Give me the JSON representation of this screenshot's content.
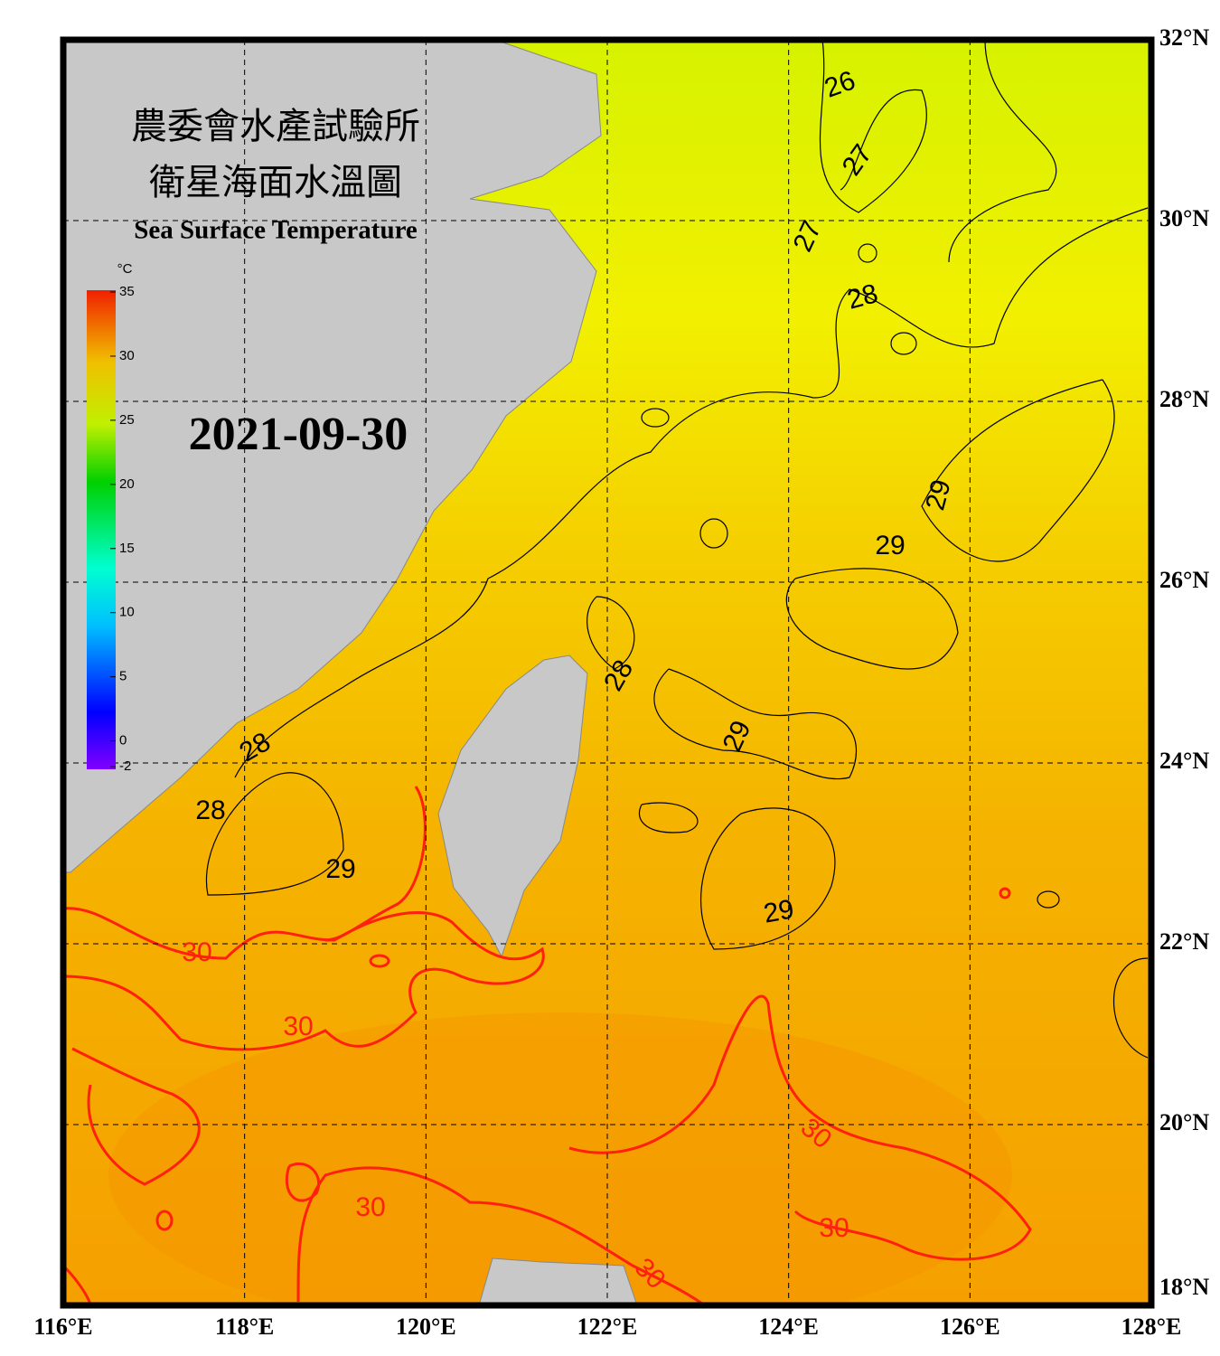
{
  "header": {
    "title_zh_1": "農委會水產試驗所",
    "title_zh_2": "衛星海面水溫圖",
    "title_en": "Sea Surface Temperature",
    "date": "2021-09-30"
  },
  "colorbar": {
    "unit": "°C",
    "ticks": [
      35,
      30,
      25,
      20,
      15,
      10,
      5,
      0,
      -2
    ],
    "range": [
      -2,
      35
    ]
  },
  "map": {
    "lon_labels": [
      "116°E",
      "118°E",
      "120°E",
      "122°E",
      "124°E",
      "126°E",
      "128°E"
    ],
    "lat_labels": [
      "32°N",
      "30°N",
      "28°N",
      "26°N",
      "24°N",
      "22°N",
      "20°N",
      "18°N"
    ],
    "grid": true,
    "contour_labels": [
      {
        "value": 26,
        "color": "#000000"
      },
      {
        "value": 27,
        "color": "#000000"
      },
      {
        "value": 27,
        "color": "#000000"
      },
      {
        "value": 28,
        "color": "#000000"
      },
      {
        "value": 29,
        "color": "#000000"
      },
      {
        "value": 29,
        "color": "#000000"
      },
      {
        "value": 28,
        "color": "#000000"
      },
      {
        "value": 29,
        "color": "#000000"
      },
      {
        "value": 28,
        "color": "#000000"
      },
      {
        "value": 28,
        "color": "#000000"
      },
      {
        "value": 29,
        "color": "#000000"
      },
      {
        "value": 29,
        "color": "#000000"
      },
      {
        "value": 30,
        "color": "#ff2010"
      },
      {
        "value": 30,
        "color": "#ff2010"
      },
      {
        "value": 30,
        "color": "#ff2010"
      },
      {
        "value": 30,
        "color": "#ff2010"
      },
      {
        "value": 30,
        "color": "#ff2010"
      },
      {
        "value": 30,
        "color": "#ff2010"
      }
    ]
  }
}
